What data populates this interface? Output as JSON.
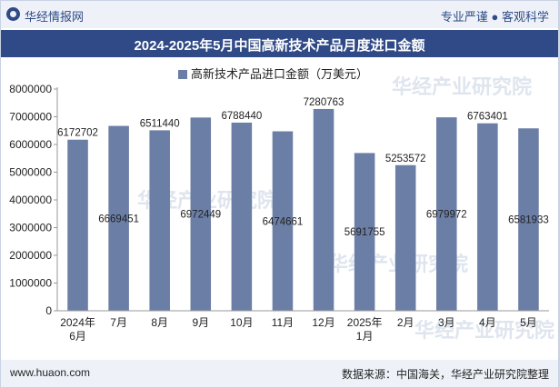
{
  "header": {
    "brand_name": "华经情报网",
    "tagline": "专业严谨 ● 客观科学"
  },
  "chart_data": {
    "type": "bar",
    "title": "2024-2025年5月中国高新技术产品月度进口金额",
    "legend": "高新技术产品进口金额（万美元）",
    "legend_position": "top",
    "grid": false,
    "categories": [
      "2024年\n6月",
      "7月",
      "8月",
      "9月",
      "10月",
      "11月",
      "12月",
      "2025年\n1月",
      "2月",
      "3月",
      "4月",
      "5月"
    ],
    "values": [
      6172702,
      6669451,
      6511440,
      6972449,
      6788440,
      6474661,
      7280763,
      5691755,
      5253572,
      6979972,
      6763401,
      6581933
    ],
    "value_labels": [
      "6172702",
      "6669451",
      "6511440",
      "6972449",
      "6788440",
      "6474661",
      "7280763",
      "5691755",
      "5253572",
      "6979972",
      "6763401",
      "6581933"
    ],
    "label_placement": [
      "above",
      "inside",
      "above",
      "inside",
      "above",
      "inside",
      "above",
      "inside",
      "above",
      "inside",
      "above",
      "inside"
    ],
    "ylim": [
      0,
      8000000
    ],
    "yticks": [
      0,
      1000000,
      2000000,
      3000000,
      4000000,
      5000000,
      6000000,
      7000000,
      8000000
    ],
    "ytick_labels": [
      "0",
      "1000000",
      "2000000",
      "3000000",
      "4000000",
      "5000000",
      "6000000",
      "7000000",
      "8000000"
    ],
    "bar_color": "#6b7ea6"
  },
  "watermarks": [
    "华经产业研究院",
    "华经产业研究院",
    "华经产业研究院",
    "华经产业研究院"
  ],
  "footer": {
    "site": "www.huaon.com",
    "source": "数据来源：中国海关，华经产业研究院整理"
  }
}
